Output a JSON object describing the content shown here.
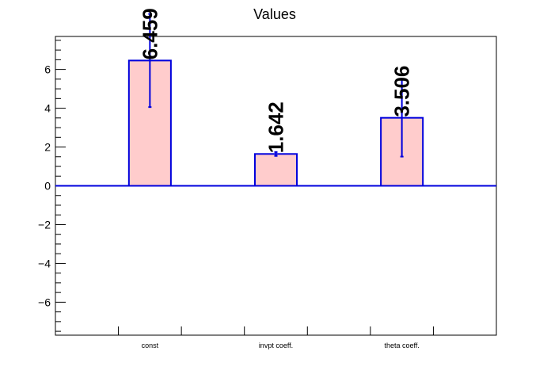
{
  "chart_data": {
    "type": "bar",
    "title": "Values",
    "categories": [
      "const",
      "invpt coeff.",
      "theta coeff."
    ],
    "values": [
      6.459,
      1.642,
      3.506
    ],
    "value_labels": [
      "6.459",
      "1.642",
      "3.506"
    ],
    "errors": [
      2.4,
      0.1,
      2.0
    ],
    "ylim": [
      -7.7,
      7.7
    ],
    "yticks": [
      -6,
      -4,
      -2,
      0,
      2,
      4,
      6
    ],
    "ytick_labels": [
      "−6",
      "−4",
      "−2",
      "0",
      "2",
      "4",
      "6"
    ],
    "xlabel": "",
    "ylabel": "",
    "grid": false,
    "colors": {
      "bar_fill": "#ffcccc",
      "bar_edge": "#0000dd"
    }
  }
}
